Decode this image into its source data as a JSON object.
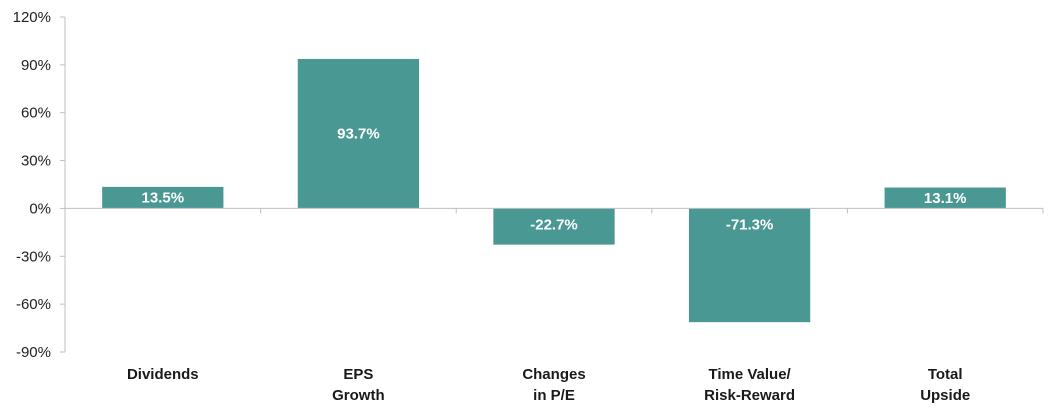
{
  "chart_data": {
    "type": "bar",
    "categories": [
      [
        "Dividends"
      ],
      [
        "EPS",
        "Growth"
      ],
      [
        "Changes",
        "in P/E"
      ],
      [
        "Time Value/",
        "Risk-Reward"
      ],
      [
        "Total",
        "Upside"
      ]
    ],
    "values": [
      13.5,
      93.7,
      -22.7,
      -71.3,
      13.1
    ],
    "data_labels": [
      "13.5%",
      "93.7%",
      "-22.7%",
      "-71.3%",
      "13.1%"
    ],
    "ylim": [
      -90,
      120
    ],
    "yticks": [
      120,
      90,
      60,
      30,
      0,
      -30,
      -60,
      -90
    ],
    "ytick_labels": [
      "120%",
      "90%",
      "60%",
      "30%",
      "0%",
      "-30%",
      "-60%",
      "-90%"
    ],
    "grid": false,
    "bar_color": "#4a9894",
    "axis_color": "#bfbfbf"
  }
}
